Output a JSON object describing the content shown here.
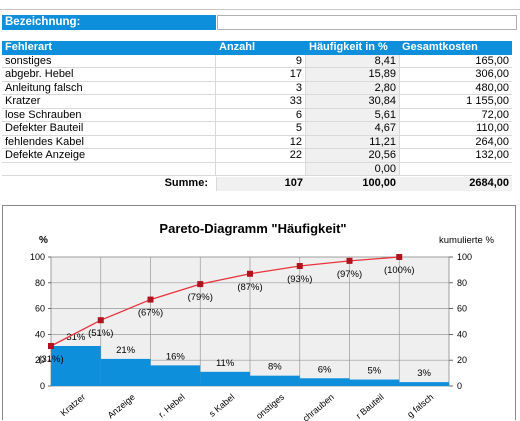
{
  "bezeichnung_label": "Bezeichnung:",
  "bezeichnung_value": "",
  "table": {
    "headers": [
      "Fehlerart",
      "Anzahl",
      "Häufigkeit in %",
      "Gesamtkosten"
    ],
    "rows": [
      [
        "sonstiges",
        "9",
        "8,41",
        "165,00"
      ],
      [
        "abgebr. Hebel",
        "17",
        "15,89",
        "306,00"
      ],
      [
        "Anleitung falsch",
        "3",
        "2,80",
        "480,00"
      ],
      [
        "Kratzer",
        "33",
        "30,84",
        "1 155,00"
      ],
      [
        "lose Schrauben",
        "6",
        "5,61",
        "72,00"
      ],
      [
        "Defekter Bauteil",
        "5",
        "4,67",
        "110,00"
      ],
      [
        "fehlendes Kabel",
        "12",
        "11,21",
        "264,00"
      ],
      [
        "Defekte Anzeige",
        "22",
        "20,56",
        "132,00"
      ],
      [
        "",
        "",
        "0,00",
        ""
      ]
    ],
    "sum": [
      "Summe:",
      "107",
      "100,00",
      "2684,00"
    ]
  },
  "chart_data": {
    "type": "bar",
    "title": "Pareto-Diagramm \"Häufigkeit\"",
    "ylabel_left": "%",
    "ylabel_right": "kumulierte %",
    "ylim": [
      0,
      100
    ],
    "yticks": [
      0,
      20,
      40,
      60,
      80,
      100
    ],
    "categories": [
      "Kratzer",
      "Anzeige",
      "r. Hebel",
      "s Kabel",
      "onstiges",
      "chrauben",
      "r Bauteil",
      "g falsch"
    ],
    "series": [
      {
        "values": [
          31,
          21,
          16,
          11,
          8,
          6,
          5,
          3
        ],
        "labels": [
          "31%",
          "21%",
          "16%",
          "11%",
          "8%",
          "6%",
          "5%",
          "3%"
        ],
        "color": "#0d8fdb"
      },
      {
        "values": [
          31,
          51,
          67,
          79,
          87,
          93,
          97,
          100
        ],
        "labels": [
          "(31%)",
          "(51%)",
          "(67%)",
          "(79%)",
          "(87%)",
          "(93%)",
          "(97%)",
          "(100%)"
        ],
        "color": "#e8323c"
      }
    ],
    "grid": true
  }
}
